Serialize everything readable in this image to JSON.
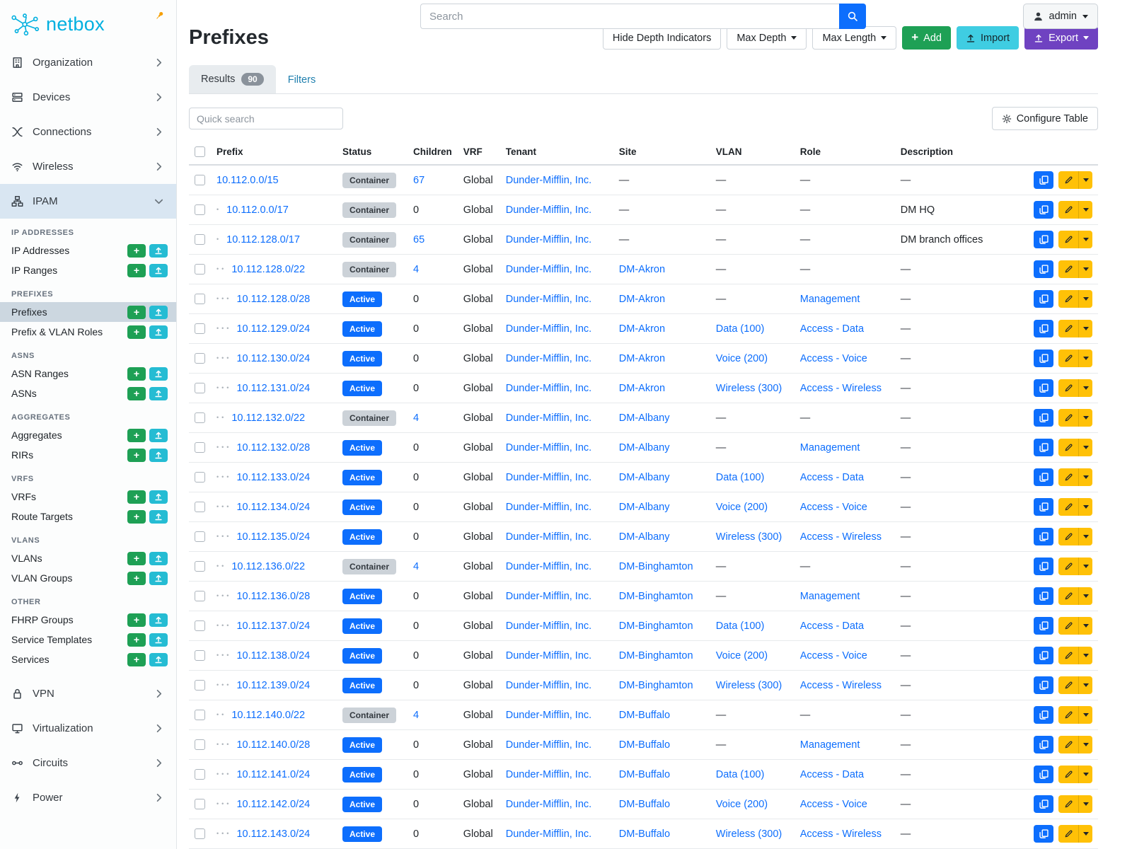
{
  "brand": {
    "name": "netbox"
  },
  "topbar": {
    "search_placeholder": "Search",
    "user": "admin"
  },
  "sidebar": {
    "top_items": [
      {
        "label": "Organization",
        "icon": "organization"
      },
      {
        "label": "Devices",
        "icon": "devices"
      },
      {
        "label": "Connections",
        "icon": "connections"
      },
      {
        "label": "Wireless",
        "icon": "wireless"
      },
      {
        "label": "IPAM",
        "icon": "ipam",
        "expanded": true,
        "active": true
      }
    ],
    "ipam_sections": [
      {
        "title": "IP ADDRESSES",
        "items": [
          {
            "label": "IP Addresses"
          },
          {
            "label": "IP Ranges"
          }
        ]
      },
      {
        "title": "PREFIXES",
        "items": [
          {
            "label": "Prefixes",
            "selected": true
          },
          {
            "label": "Prefix & VLAN Roles"
          }
        ]
      },
      {
        "title": "ASNS",
        "items": [
          {
            "label": "ASN Ranges"
          },
          {
            "label": "ASNs"
          }
        ]
      },
      {
        "title": "AGGREGATES",
        "items": [
          {
            "label": "Aggregates"
          },
          {
            "label": "RIRs"
          }
        ]
      },
      {
        "title": "VRFS",
        "items": [
          {
            "label": "VRFs"
          },
          {
            "label": "Route Targets"
          }
        ]
      },
      {
        "title": "VLANS",
        "items": [
          {
            "label": "VLANs"
          },
          {
            "label": "VLAN Groups"
          }
        ]
      },
      {
        "title": "OTHER",
        "items": [
          {
            "label": "FHRP Groups"
          },
          {
            "label": "Service Templates"
          },
          {
            "label": "Services"
          }
        ]
      }
    ],
    "bottom_items": [
      {
        "label": "VPN",
        "icon": "vpn"
      },
      {
        "label": "Virtualization",
        "icon": "virtualization"
      },
      {
        "label": "Circuits",
        "icon": "circuits"
      },
      {
        "label": "Power",
        "icon": "power"
      }
    ]
  },
  "page": {
    "title": "Prefixes",
    "toolbar": {
      "hide_depth": "Hide Depth Indicators",
      "max_depth": "Max Depth",
      "max_length": "Max Length",
      "add": "Add",
      "import": "Import",
      "export": "Export"
    },
    "tabs": {
      "results": "Results",
      "results_count": "90",
      "filters": "Filters"
    },
    "quick_search_placeholder": "Quick search",
    "configure_table": "Configure Table"
  },
  "table": {
    "empty": "—",
    "columns": [
      "Prefix",
      "Status",
      "Children",
      "VRF",
      "Tenant",
      "Site",
      "VLAN",
      "Role",
      "Description"
    ],
    "rows": [
      {
        "depth": 0,
        "prefix": "10.112.0.0/15",
        "status": "Container",
        "children": "67",
        "children_link": true,
        "vrf": "Global",
        "tenant": "Dunder-Mifflin, Inc.",
        "site": "",
        "vlan": "",
        "role": "",
        "description": ""
      },
      {
        "depth": 1,
        "prefix": "10.112.0.0/17",
        "status": "Container",
        "children": "0",
        "children_link": false,
        "vrf": "Global",
        "tenant": "Dunder-Mifflin, Inc.",
        "site": "",
        "vlan": "",
        "role": "",
        "description": "DM HQ"
      },
      {
        "depth": 1,
        "prefix": "10.112.128.0/17",
        "status": "Container",
        "children": "65",
        "children_link": true,
        "vrf": "Global",
        "tenant": "Dunder-Mifflin, Inc.",
        "site": "",
        "vlan": "",
        "role": "",
        "description": "DM branch offices"
      },
      {
        "depth": 2,
        "prefix": "10.112.128.0/22",
        "status": "Container",
        "children": "4",
        "children_link": true,
        "vrf": "Global",
        "tenant": "Dunder-Mifflin, Inc.",
        "site": "DM-Akron",
        "vlan": "",
        "role": "",
        "description": ""
      },
      {
        "depth": 3,
        "prefix": "10.112.128.0/28",
        "status": "Active",
        "children": "0",
        "children_link": false,
        "vrf": "Global",
        "tenant": "Dunder-Mifflin, Inc.",
        "site": "DM-Akron",
        "vlan": "",
        "role": "Management",
        "description": ""
      },
      {
        "depth": 3,
        "prefix": "10.112.129.0/24",
        "status": "Active",
        "children": "0",
        "children_link": false,
        "vrf": "Global",
        "tenant": "Dunder-Mifflin, Inc.",
        "site": "DM-Akron",
        "vlan": "Data (100)",
        "role": "Access - Data",
        "description": ""
      },
      {
        "depth": 3,
        "prefix": "10.112.130.0/24",
        "status": "Active",
        "children": "0",
        "children_link": false,
        "vrf": "Global",
        "tenant": "Dunder-Mifflin, Inc.",
        "site": "DM-Akron",
        "vlan": "Voice (200)",
        "role": "Access - Voice",
        "description": ""
      },
      {
        "depth": 3,
        "prefix": "10.112.131.0/24",
        "status": "Active",
        "children": "0",
        "children_link": false,
        "vrf": "Global",
        "tenant": "Dunder-Mifflin, Inc.",
        "site": "DM-Akron",
        "vlan": "Wireless (300)",
        "role": "Access - Wireless",
        "description": ""
      },
      {
        "depth": 2,
        "prefix": "10.112.132.0/22",
        "status": "Container",
        "children": "4",
        "children_link": true,
        "vrf": "Global",
        "tenant": "Dunder-Mifflin, Inc.",
        "site": "DM-Albany",
        "vlan": "",
        "role": "",
        "description": ""
      },
      {
        "depth": 3,
        "prefix": "10.112.132.0/28",
        "status": "Active",
        "children": "0",
        "children_link": false,
        "vrf": "Global",
        "tenant": "Dunder-Mifflin, Inc.",
        "site": "DM-Albany",
        "vlan": "",
        "role": "Management",
        "description": ""
      },
      {
        "depth": 3,
        "prefix": "10.112.133.0/24",
        "status": "Active",
        "children": "0",
        "children_link": false,
        "vrf": "Global",
        "tenant": "Dunder-Mifflin, Inc.",
        "site": "DM-Albany",
        "vlan": "Data (100)",
        "role": "Access - Data",
        "description": ""
      },
      {
        "depth": 3,
        "prefix": "10.112.134.0/24",
        "status": "Active",
        "children": "0",
        "children_link": false,
        "vrf": "Global",
        "tenant": "Dunder-Mifflin, Inc.",
        "site": "DM-Albany",
        "vlan": "Voice (200)",
        "role": "Access - Voice",
        "description": ""
      },
      {
        "depth": 3,
        "prefix": "10.112.135.0/24",
        "status": "Active",
        "children": "0",
        "children_link": false,
        "vrf": "Global",
        "tenant": "Dunder-Mifflin, Inc.",
        "site": "DM-Albany",
        "vlan": "Wireless (300)",
        "role": "Access - Wireless",
        "description": ""
      },
      {
        "depth": 2,
        "prefix": "10.112.136.0/22",
        "status": "Container",
        "children": "4",
        "children_link": true,
        "vrf": "Global",
        "tenant": "Dunder-Mifflin, Inc.",
        "site": "DM-Binghamton",
        "vlan": "",
        "role": "",
        "description": ""
      },
      {
        "depth": 3,
        "prefix": "10.112.136.0/28",
        "status": "Active",
        "children": "0",
        "children_link": false,
        "vrf": "Global",
        "tenant": "Dunder-Mifflin, Inc.",
        "site": "DM-Binghamton",
        "vlan": "",
        "role": "Management",
        "description": ""
      },
      {
        "depth": 3,
        "prefix": "10.112.137.0/24",
        "status": "Active",
        "children": "0",
        "children_link": false,
        "vrf": "Global",
        "tenant": "Dunder-Mifflin, Inc.",
        "site": "DM-Binghamton",
        "vlan": "Data (100)",
        "role": "Access - Data",
        "description": ""
      },
      {
        "depth": 3,
        "prefix": "10.112.138.0/24",
        "status": "Active",
        "children": "0",
        "children_link": false,
        "vrf": "Global",
        "tenant": "Dunder-Mifflin, Inc.",
        "site": "DM-Binghamton",
        "vlan": "Voice (200)",
        "role": "Access - Voice",
        "description": ""
      },
      {
        "depth": 3,
        "prefix": "10.112.139.0/24",
        "status": "Active",
        "children": "0",
        "children_link": false,
        "vrf": "Global",
        "tenant": "Dunder-Mifflin, Inc.",
        "site": "DM-Binghamton",
        "vlan": "Wireless (300)",
        "role": "Access - Wireless",
        "description": ""
      },
      {
        "depth": 2,
        "prefix": "10.112.140.0/22",
        "status": "Container",
        "children": "4",
        "children_link": true,
        "vrf": "Global",
        "tenant": "Dunder-Mifflin, Inc.",
        "site": "DM-Buffalo",
        "vlan": "",
        "role": "",
        "description": ""
      },
      {
        "depth": 3,
        "prefix": "10.112.140.0/28",
        "status": "Active",
        "children": "0",
        "children_link": false,
        "vrf": "Global",
        "tenant": "Dunder-Mifflin, Inc.",
        "site": "DM-Buffalo",
        "vlan": "",
        "role": "Management",
        "description": ""
      },
      {
        "depth": 3,
        "prefix": "10.112.141.0/24",
        "status": "Active",
        "children": "0",
        "children_link": false,
        "vrf": "Global",
        "tenant": "Dunder-Mifflin, Inc.",
        "site": "DM-Buffalo",
        "vlan": "Data (100)",
        "role": "Access - Data",
        "description": ""
      },
      {
        "depth": 3,
        "prefix": "10.112.142.0/24",
        "status": "Active",
        "children": "0",
        "children_link": false,
        "vrf": "Global",
        "tenant": "Dunder-Mifflin, Inc.",
        "site": "DM-Buffalo",
        "vlan": "Voice (200)",
        "role": "Access - Voice",
        "description": ""
      },
      {
        "depth": 3,
        "prefix": "10.112.143.0/24",
        "status": "Active",
        "children": "0",
        "children_link": false,
        "vrf": "Global",
        "tenant": "Dunder-Mifflin, Inc.",
        "site": "DM-Buffalo",
        "vlan": "Wireless (300)",
        "role": "Access - Wireless",
        "description": ""
      }
    ]
  },
  "colors": {
    "brand_teal": "#00b0e0",
    "link_blue": "#0d6efd",
    "status_active": "#0d6efd",
    "status_container_bg": "#ccd2d8",
    "add_green": "#1ea055",
    "import_cyan": "#3fcde2",
    "export_purple": "#6f42c1",
    "action_yellow": "#ffc107",
    "pin_orange": "#f59f00"
  }
}
